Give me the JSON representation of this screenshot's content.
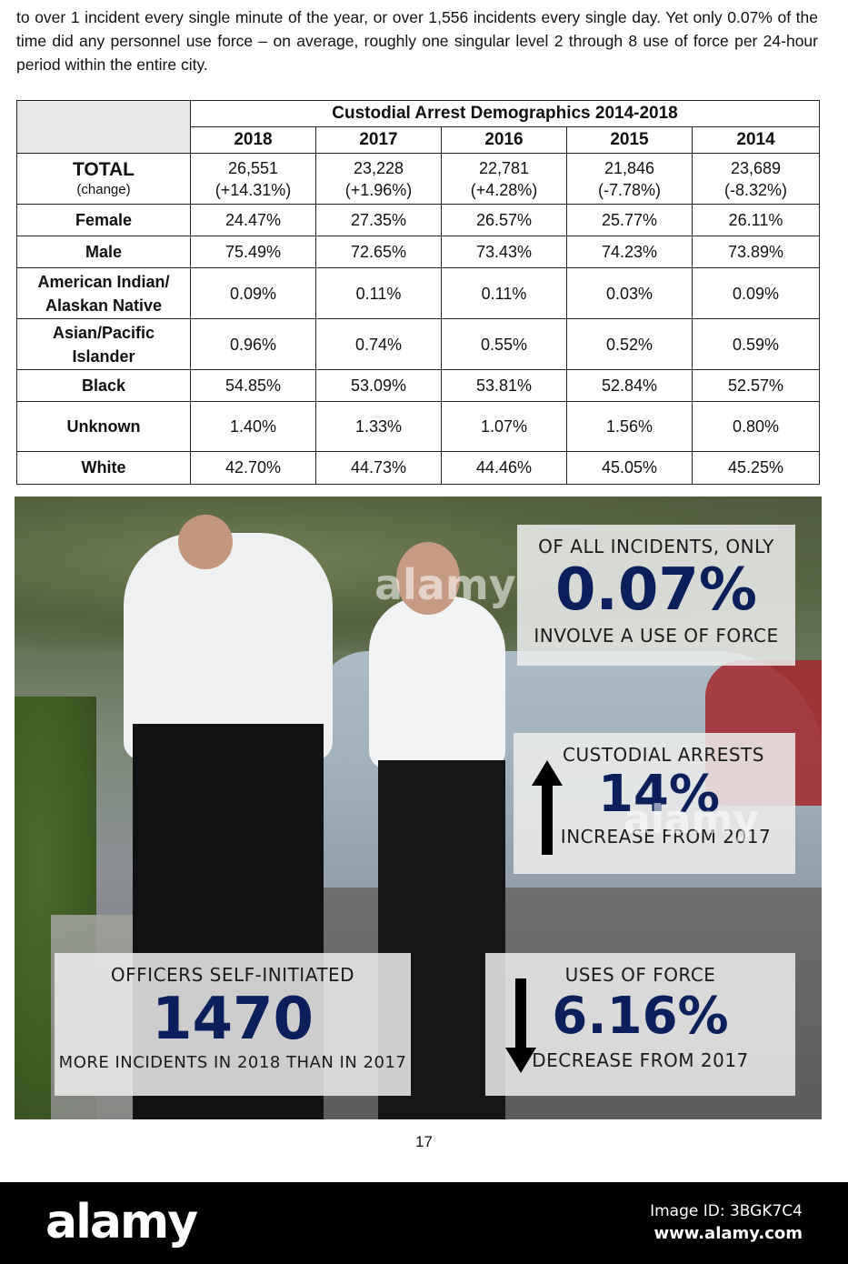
{
  "intro_text": "to over 1 incident every single minute of the year, or over 1,556 incidents every single day. Yet only 0.07% of the time did any personnel use force – on average, roughly one singular level 2 through 8 use of force per 24-hour period within the entire city.",
  "table": {
    "title": "Custodial Arrest Demographics 2014-2018",
    "years": [
      "2018",
      "2017",
      "2016",
      "2015",
      "2014"
    ],
    "total": {
      "label": "TOTAL",
      "sublabel": "(change)",
      "values": [
        "26,551",
        "23,228",
        "22,781",
        "21,846",
        "23,689"
      ],
      "changes": [
        "(+14.31%)",
        "(+1.96%)",
        "(+4.28%)",
        "(-7.78%)",
        "(-8.32%)"
      ]
    },
    "rows": [
      {
        "label": "Female",
        "values": [
          "24.47%",
          "27.35%",
          "26.57%",
          "25.77%",
          "26.11%"
        ]
      },
      {
        "label": "Male",
        "values": [
          "75.49%",
          "72.65%",
          "73.43%",
          "74.23%",
          "73.89%"
        ]
      },
      {
        "label_line1": "American Indian/",
        "label_line2": "Alaskan Native",
        "values": [
          "0.09%",
          "0.11%",
          "0.11%",
          "0.03%",
          "0.09%"
        ]
      },
      {
        "label_line1": "Asian/Pacific",
        "label_line2": "Islander",
        "values": [
          "0.96%",
          "0.74%",
          "0.55%",
          "0.52%",
          "0.59%"
        ]
      },
      {
        "label": "Black",
        "values": [
          "54.85%",
          "53.09%",
          "53.81%",
          "52.84%",
          "52.57%"
        ]
      },
      {
        "label": "Unknown",
        "values": [
          "1.40%",
          "1.33%",
          "1.07%",
          "1.56%",
          "0.80%"
        ]
      },
      {
        "label": "White",
        "values": [
          "42.70%",
          "44.73%",
          "44.46%",
          "45.05%",
          "45.25%"
        ]
      }
    ]
  },
  "infographic": {
    "use_of_force": {
      "top": "OF ALL INCIDENTS, ONLY",
      "big": "0.07%",
      "bottom": "INVOLVE A USE OF FORCE"
    },
    "custodial": {
      "top": "CUSTODIAL ARRESTS",
      "big": "14%",
      "bottom": "INCREASE FROM 2017",
      "arrow": "arrow-up"
    },
    "self_initiated": {
      "top": "OFFICERS SELF-INITIATED",
      "big": "1470",
      "bottom": "MORE INCIDENTS IN 2018 THAN IN 2017"
    },
    "uses_of_force": {
      "top": "USES OF FORCE",
      "big": "6.16%",
      "bottom": "DECREASE FROM 2017",
      "arrow": "arrow-down"
    },
    "big_number_color": "#0b1f5c"
  },
  "page_number": "17",
  "footer": {
    "logo": "alamy",
    "image_id": "Image ID: 3BGK7C4",
    "site": "www.alamy.com"
  },
  "watermark": "alamy"
}
